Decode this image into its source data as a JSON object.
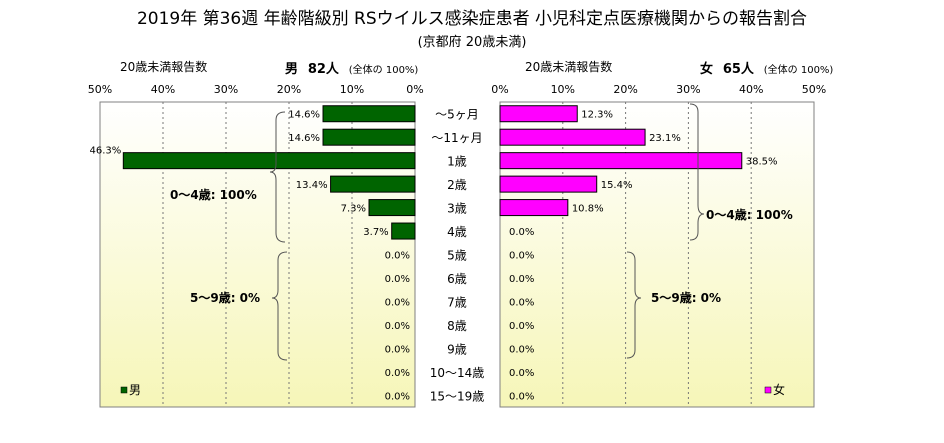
{
  "title": "2019年 第36週 年齢階級別 RSウイルス感染症患者 小児科定点医療機関からの報告割合",
  "subtitle": "(京都府 20歳未満)",
  "male_header": {
    "axis_title": "20歳未満報告数",
    "sex": "男",
    "count": "82人",
    "note": "(全体の  100%)"
  },
  "female_header": {
    "axis_title": "20歳未満報告数",
    "sex": "女",
    "count": "65人",
    "note": "(全体の  100%)"
  },
  "annotations": {
    "male_0_4": "0～4歳: 100%",
    "male_5_9": "5～9歳: 0%",
    "female_0_4": "0～4歳: 100%",
    "female_5_9": "5～9歳: 0%"
  },
  "chart_data": {
    "type": "bar",
    "orientation": "horizontal-pyramid",
    "categories": [
      "～5ヶ月",
      "～11ヶ月",
      "1歳",
      "2歳",
      "3歳",
      "4歳",
      "5歳",
      "6歳",
      "7歳",
      "8歳",
      "9歳",
      "10～14歳",
      "15～19歳"
    ],
    "xlim": [
      0,
      50
    ],
    "ticks": [
      "0%",
      "10%",
      "20%",
      "30%",
      "40%",
      "50%"
    ],
    "series": [
      {
        "name": "男",
        "color": "#006400",
        "values": [
          14.6,
          14.6,
          46.3,
          13.4,
          7.3,
          3.7,
          0,
          0,
          0,
          0,
          0,
          0,
          0
        ],
        "labels": [
          "14.6%",
          "14.6%",
          "46.3%",
          "13.4%",
          "7.3%",
          "3.7%",
          "0.0%",
          "0.0%",
          "0.0%",
          "0.0%",
          "0.0%",
          "0.0%",
          "0.0%"
        ]
      },
      {
        "name": "女",
        "color": "#ff00ff",
        "values": [
          12.3,
          23.1,
          38.5,
          15.4,
          10.8,
          0,
          0,
          0,
          0,
          0,
          0,
          0,
          0
        ],
        "labels": [
          "12.3%",
          "23.1%",
          "38.5%",
          "15.4%",
          "10.8%",
          "0.0%",
          "0.0%",
          "0.0%",
          "0.0%",
          "0.0%",
          "0.0%",
          "0.0%",
          "0.0%"
        ]
      }
    ],
    "grid": true,
    "legend_position": "bottom"
  }
}
